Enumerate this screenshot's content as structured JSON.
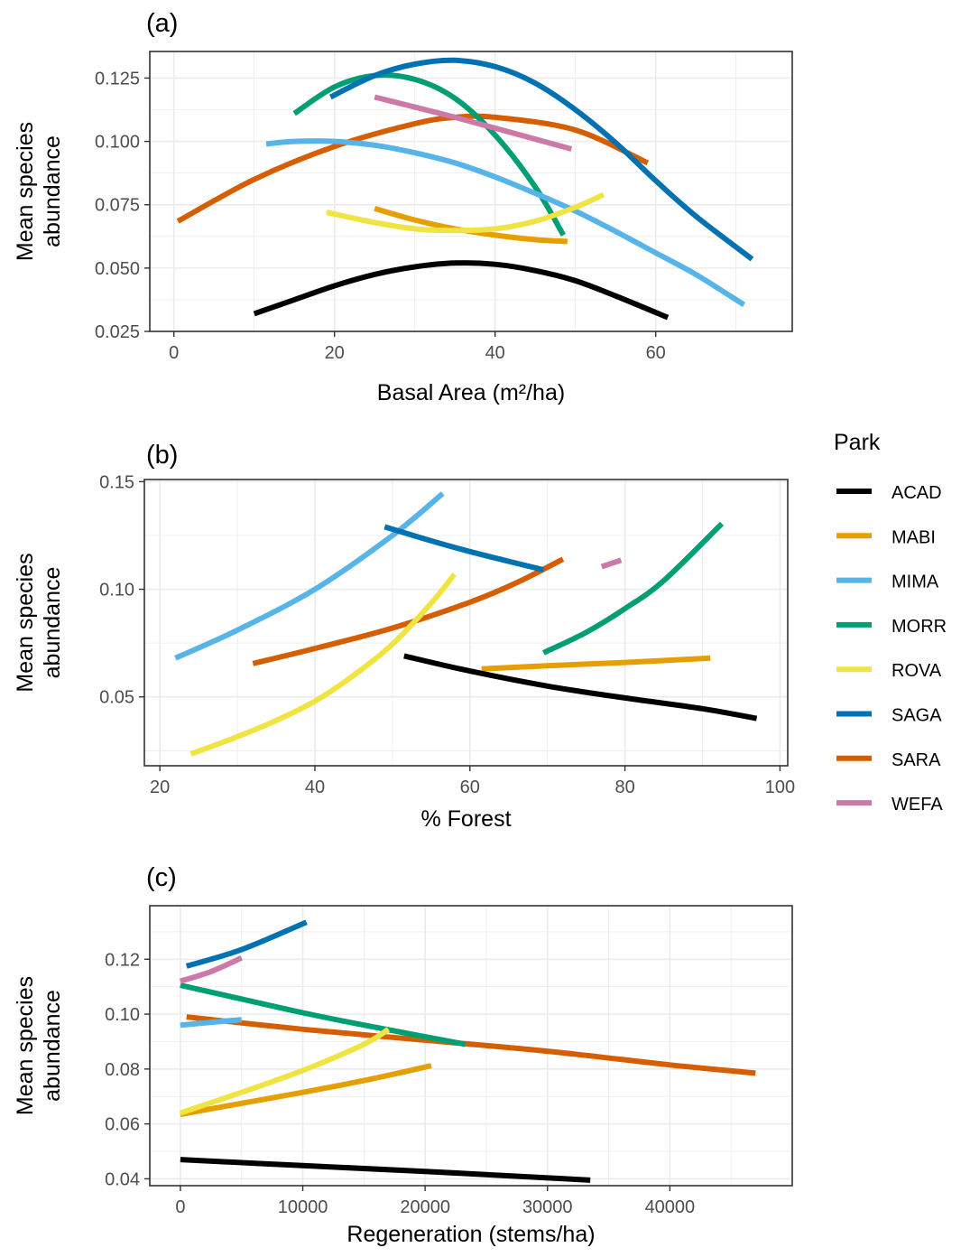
{
  "chart_data": [
    {
      "type": "line",
      "panel_label": "(a)",
      "xlabel": "Basal Area (m²/ha)",
      "ylabel": "Mean species abundance",
      "xlim": [
        -3,
        77
      ],
      "ylim": [
        0.025,
        0.1355
      ],
      "x_ticks": [
        0,
        20,
        40,
        60
      ],
      "y_ticks": [
        0.025,
        0.05,
        0.075,
        0.1,
        0.125
      ],
      "y_tick_labels": [
        "0.025",
        "0.050",
        "0.075",
        "0.100",
        "0.125"
      ],
      "grid": true,
      "series": [
        {
          "name": "ACAD",
          "x": [
            10,
            15,
            20,
            25,
            30,
            35,
            40,
            45,
            50,
            55,
            61.5
          ],
          "y": [
            0.032,
            0.0375,
            0.043,
            0.0475,
            0.0505,
            0.052,
            0.0515,
            0.049,
            0.045,
            0.039,
            0.0305
          ]
        },
        {
          "name": "MABI",
          "x": [
            25,
            30,
            35,
            40,
            45,
            49
          ],
          "y": [
            0.0735,
            0.069,
            0.0655,
            0.063,
            0.0612,
            0.0605
          ]
        },
        {
          "name": "MIMA",
          "x": [
            11.5,
            15,
            20,
            25,
            30,
            35,
            40,
            45,
            50,
            55,
            60,
            65,
            71
          ],
          "y": [
            0.099,
            0.1,
            0.1,
            0.0985,
            0.0955,
            0.0915,
            0.086,
            0.0795,
            0.0725,
            0.0645,
            0.056,
            0.0475,
            0.0355
          ]
        },
        {
          "name": "MORR",
          "x": [
            15,
            20,
            25,
            30,
            35,
            40,
            45,
            48.5
          ],
          "y": [
            0.111,
            0.1215,
            0.126,
            0.1245,
            0.117,
            0.1025,
            0.082,
            0.063
          ]
        },
        {
          "name": "ROVA",
          "x": [
            19,
            25,
            30,
            35,
            40,
            45,
            50,
            53.5
          ],
          "y": [
            0.072,
            0.068,
            0.0655,
            0.0648,
            0.0655,
            0.0685,
            0.074,
            0.079
          ]
        },
        {
          "name": "SAGA",
          "x": [
            19.5,
            25,
            30,
            35,
            40,
            45,
            50,
            55,
            60,
            65,
            72
          ],
          "y": [
            0.1175,
            0.126,
            0.1305,
            0.132,
            0.1295,
            0.123,
            0.1125,
            0.0995,
            0.0845,
            0.0705,
            0.0535
          ]
        },
        {
          "name": "SARA",
          "x": [
            0.5,
            10,
            20,
            30,
            35,
            40,
            50,
            59
          ],
          "y": [
            0.0685,
            0.085,
            0.098,
            0.107,
            0.1095,
            0.1095,
            0.1045,
            0.0915
          ]
        },
        {
          "name": "WEFA",
          "x": [
            25,
            35,
            49.5
          ],
          "y": [
            0.1175,
            0.1095,
            0.097
          ]
        }
      ]
    },
    {
      "type": "line",
      "panel_label": "(b)",
      "xlabel": "% Forest",
      "ylabel": "Mean species abundance",
      "xlim": [
        18,
        101
      ],
      "ylim": [
        0.018,
        0.151
      ],
      "x_ticks": [
        20,
        40,
        60,
        80,
        100
      ],
      "y_ticks": [
        0.05,
        0.1,
        0.15
      ],
      "y_tick_labels": [
        "0.05",
        "0.10",
        "0.15"
      ],
      "grid": true,
      "series": [
        {
          "name": "ACAD",
          "x": [
            51.5,
            60,
            70,
            80,
            90,
            97
          ],
          "y": [
            0.069,
            0.062,
            0.055,
            0.0495,
            0.0445,
            0.04
          ]
        },
        {
          "name": "MABI",
          "x": [
            61.5,
            70,
            80,
            91
          ],
          "y": [
            0.063,
            0.0645,
            0.066,
            0.068
          ]
        },
        {
          "name": "MIMA",
          "x": [
            22,
            30,
            40,
            50,
            56.5
          ],
          "y": [
            0.068,
            0.081,
            0.1,
            0.125,
            0.1445
          ]
        },
        {
          "name": "MORR",
          "x": [
            69.5,
            75,
            80,
            85,
            92.5
          ],
          "y": [
            0.0705,
            0.08,
            0.091,
            0.104,
            0.1305
          ]
        },
        {
          "name": "ROVA",
          "x": [
            24,
            30,
            35,
            40,
            45,
            50,
            55,
            58
          ],
          "y": [
            0.0235,
            0.0315,
            0.039,
            0.048,
            0.06,
            0.0745,
            0.0935,
            0.107
          ]
        },
        {
          "name": "SAGA",
          "x": [
            49,
            55,
            60,
            65,
            69.5
          ],
          "y": [
            0.129,
            0.1225,
            0.1175,
            0.113,
            0.109
          ]
        },
        {
          "name": "SARA",
          "x": [
            32,
            40,
            50,
            60,
            66,
            72
          ],
          "y": [
            0.0655,
            0.0725,
            0.082,
            0.094,
            0.103,
            0.114
          ]
        },
        {
          "name": "WEFA",
          "x": [
            77,
            79.5
          ],
          "y": [
            0.1105,
            0.1135
          ]
        }
      ]
    },
    {
      "type": "line",
      "panel_label": "(c)",
      "xlabel": "Regeneration (stems/ha)",
      "ylabel": "Mean species abundance",
      "xlim": [
        -2500,
        50000
      ],
      "ylim": [
        0.0375,
        0.1395
      ],
      "x_ticks": [
        0,
        10000,
        20000,
        30000,
        40000
      ],
      "y_ticks": [
        0.04,
        0.06,
        0.08,
        0.1,
        0.12
      ],
      "y_tick_labels": [
        "0.04",
        "0.06",
        "0.08",
        "0.10",
        "0.12"
      ],
      "grid": true,
      "series": [
        {
          "name": "ACAD",
          "x": [
            0,
            10000,
            20000,
            33500
          ],
          "y": [
            0.047,
            0.0448,
            0.0427,
            0.0395
          ]
        },
        {
          "name": "MABI",
          "x": [
            0,
            5000,
            10000,
            15000,
            20500
          ],
          "y": [
            0.0635,
            0.0675,
            0.0715,
            0.0758,
            0.0812
          ]
        },
        {
          "name": "MIMA",
          "x": [
            0,
            5000
          ],
          "y": [
            0.096,
            0.098
          ]
        },
        {
          "name": "MORR",
          "x": [
            0,
            5000,
            10000,
            15000,
            23300
          ],
          "y": [
            0.1105,
            0.1055,
            0.1005,
            0.096,
            0.089
          ]
        },
        {
          "name": "ROVA",
          "x": [
            0,
            5000,
            10000,
            15000,
            17000
          ],
          "y": [
            0.064,
            0.0715,
            0.0795,
            0.089,
            0.0945
          ]
        },
        {
          "name": "SAGA",
          "x": [
            500,
            5000,
            10300
          ],
          "y": [
            0.1175,
            0.1235,
            0.1335
          ]
        },
        {
          "name": "SARA",
          "x": [
            500,
            10000,
            20000,
            30000,
            40000,
            47000
          ],
          "y": [
            0.099,
            0.0945,
            0.0905,
            0.0865,
            0.0815,
            0.0785
          ]
        },
        {
          "name": "WEFA",
          "x": [
            0,
            2500,
            5000
          ],
          "y": [
            0.112,
            0.1155,
            0.1205
          ]
        }
      ]
    }
  ],
  "colors": {
    "ACAD": "#000000",
    "MABI": "#E69F00",
    "MIMA": "#56B4E9",
    "MORR": "#009E73",
    "ROVA": "#F0E442",
    "SAGA": "#0072B2",
    "SARA": "#D55E00",
    "WEFA": "#CC79A7"
  },
  "legend": {
    "title": "Park",
    "items": [
      "ACAD",
      "MABI",
      "MIMA",
      "MORR",
      "ROVA",
      "SAGA",
      "SARA",
      "WEFA"
    ]
  }
}
